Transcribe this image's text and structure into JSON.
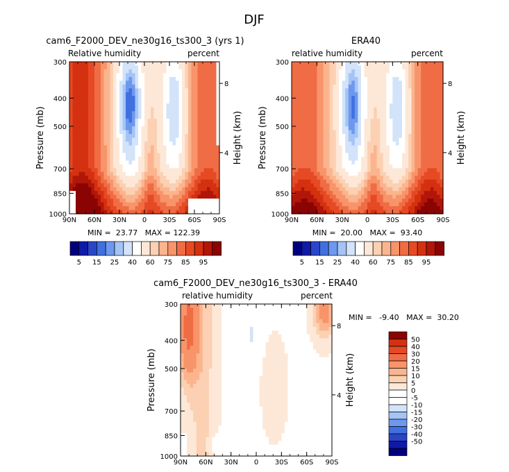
{
  "figure": {
    "title": "DJF"
  },
  "colors": {
    "blue": [
      "#00007f",
      "#0f1aa6",
      "#2a45c8",
      "#4070e0",
      "#6e98ee",
      "#a4c4f6",
      "#d2e3fa"
    ],
    "red": [
      "#fde8d8",
      "#fcd0b2",
      "#fbb58e",
      "#f8946a",
      "#f06c45",
      "#e54a25",
      "#d43110",
      "#b21608",
      "#8a0404",
      "#6a0000"
    ],
    "white": "#ffffff"
  },
  "chart_data": [
    {
      "id": "model",
      "type": "heatmap",
      "title": "cam6_F2000_DEV_ne30g16_ts300_3 (yrs 1)",
      "left_label": "Relative humidity",
      "right_label": "percent",
      "ylabel": "Pressure (mb)",
      "ylabel_right": "Height (km)",
      "xticks": [
        "90N",
        "60N",
        "30N",
        "0",
        "30S",
        "60S",
        "90S"
      ],
      "yticks": [
        "300",
        "400",
        "500",
        "700",
        "850",
        "1000"
      ],
      "yticks_right": [
        "8",
        "4"
      ],
      "xlim": [
        90,
        -90
      ],
      "ylim": [
        1000,
        300
      ],
      "stats": "MIN =  23.77   MAX = 122.39",
      "colorbar_labels": [
        "5",
        "15",
        "25",
        "40",
        "60",
        "75",
        "85",
        "95"
      ]
    },
    {
      "id": "obs",
      "type": "heatmap",
      "title": "ERA40",
      "left_label": "relative humidity",
      "right_label": "percent",
      "ylabel": "Pressure (mb)",
      "ylabel_right": "Height (km)",
      "xticks": [
        "90N",
        "60N",
        "30N",
        "0",
        "30S",
        "60S",
        "90S"
      ],
      "yticks": [
        "300",
        "400",
        "500",
        "700",
        "850",
        "1000"
      ],
      "yticks_right": [
        "8",
        "4"
      ],
      "xlim": [
        90,
        -90
      ],
      "ylim": [
        1000,
        300
      ],
      "stats": "MIN =  20.00   MAX =  93.40",
      "colorbar_labels": [
        "5",
        "15",
        "25",
        "40",
        "60",
        "75",
        "85",
        "95"
      ]
    },
    {
      "id": "diff",
      "type": "heatmap",
      "title": "cam6_F2000_DEV_ne30g16_ts300_3 - ERA40",
      "left_label": "relative humidity",
      "right_label": "percent",
      "ylabel": "Pressure (mb)",
      "ylabel_right": "Height (km)",
      "xticks": [
        "90N",
        "60N",
        "30N",
        "0",
        "30S",
        "60S",
        "90S"
      ],
      "yticks": [
        "300",
        "400",
        "500",
        "700",
        "850",
        "1000"
      ],
      "yticks_right": [
        "8",
        "4"
      ],
      "xlim": [
        90,
        -90
      ],
      "ylim": [
        1000,
        300
      ],
      "stats": "MIN =   -9.40   MAX =  30.20",
      "colorbar_labels": [
        "50",
        "40",
        "30",
        "20",
        "15",
        "10",
        "5",
        "0",
        "-5",
        "-10",
        "-15",
        "-20",
        "-30",
        "-40",
        "-50"
      ]
    }
  ]
}
